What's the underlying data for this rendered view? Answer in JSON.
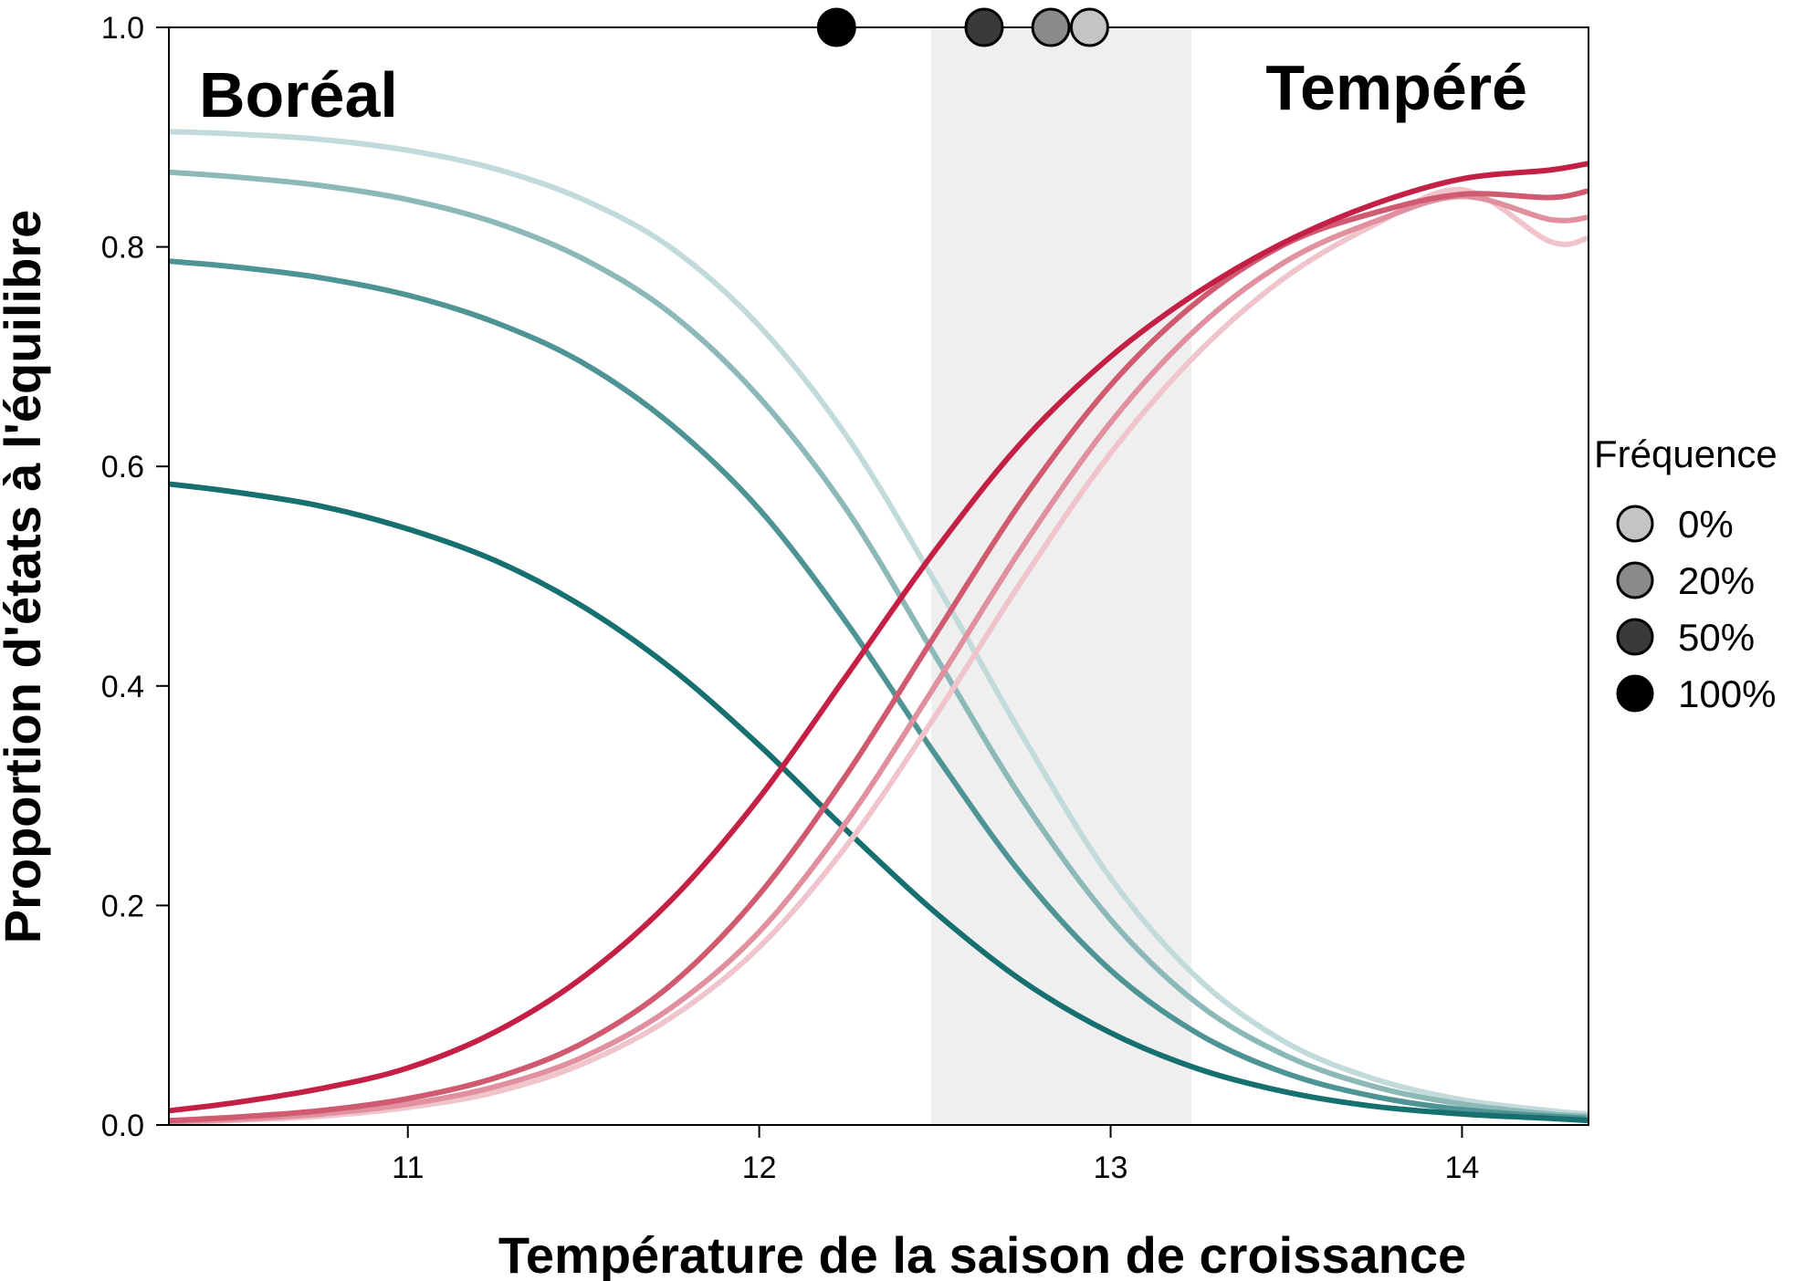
{
  "chart_data": {
    "type": "line",
    "title": "",
    "xlabel": "Température de la saison de croissance",
    "ylabel": "Proportion d'états à l'équilibre",
    "xlim": [
      10.32,
      14.36
    ],
    "ylim": [
      0.0,
      1.0
    ],
    "x_ticks": [
      11,
      12,
      13,
      14
    ],
    "y_ticks": [
      0.0,
      0.2,
      0.4,
      0.6,
      0.8,
      1.0
    ],
    "x_tick_labels": [
      "11",
      "12",
      "13",
      "14"
    ],
    "y_tick_labels": [
      "0.0",
      "0.2",
      "0.4",
      "0.6",
      "0.8",
      "1.0"
    ],
    "grid": false,
    "region_labels": {
      "left": "Boréal",
      "right": "Tempéré"
    },
    "shaded_band": {
      "x_start": 12.49,
      "x_end": 13.23,
      "color": "#efefef"
    },
    "series_x": [
      10.32,
      10.5,
      10.75,
      11.0,
      11.25,
      11.5,
      11.75,
      12.0,
      12.25,
      12.5,
      12.75,
      13.0,
      13.25,
      13.5,
      13.75,
      14.0,
      14.25,
      14.36
    ],
    "series": [
      {
        "group": "boreal",
        "frequency": "0%",
        "color": "#c2dada",
        "values": [
          0.905,
          0.903,
          0.898,
          0.888,
          0.871,
          0.843,
          0.799,
          0.728,
          0.627,
          0.495,
          0.354,
          0.225,
          0.133,
          0.075,
          0.042,
          0.023,
          0.013,
          0.01
        ]
      },
      {
        "group": "boreal",
        "frequency": "20%",
        "color": "#8cb8b8",
        "values": [
          0.868,
          0.864,
          0.856,
          0.843,
          0.822,
          0.789,
          0.739,
          0.663,
          0.56,
          0.428,
          0.296,
          0.187,
          0.11,
          0.063,
          0.035,
          0.019,
          0.01,
          0.008
        ]
      },
      {
        "group": "boreal",
        "frequency": "50%",
        "color": "#4f9494",
        "values": [
          0.787,
          0.782,
          0.772,
          0.756,
          0.731,
          0.694,
          0.638,
          0.561,
          0.457,
          0.338,
          0.227,
          0.141,
          0.083,
          0.047,
          0.026,
          0.014,
          0.008,
          0.006
        ]
      },
      {
        "group": "boreal",
        "frequency": "100%",
        "color": "#16706f",
        "values": [
          0.584,
          0.577,
          0.564,
          0.543,
          0.514,
          0.472,
          0.416,
          0.346,
          0.268,
          0.194,
          0.131,
          0.084,
          0.051,
          0.03,
          0.017,
          0.01,
          0.006,
          0.004
        ]
      },
      {
        "group": "tempere",
        "frequency": "0%",
        "color": "#f0c4cb",
        "values": [
          0.002,
          0.004,
          0.008,
          0.016,
          0.03,
          0.056,
          0.098,
          0.162,
          0.255,
          0.372,
          0.497,
          0.612,
          0.704,
          0.773,
          0.82,
          0.852,
          0.805,
          0.808
        ]
      },
      {
        "group": "tempere",
        "frequency": "20%",
        "color": "#e0909f",
        "values": [
          0.003,
          0.005,
          0.01,
          0.019,
          0.035,
          0.062,
          0.107,
          0.176,
          0.277,
          0.4,
          0.527,
          0.64,
          0.727,
          0.787,
          0.823,
          0.846,
          0.825,
          0.827
        ]
      },
      {
        "group": "tempere",
        "frequency": "50%",
        "color": "#d05a70",
        "values": [
          0.004,
          0.007,
          0.013,
          0.024,
          0.043,
          0.075,
          0.128,
          0.21,
          0.32,
          0.446,
          0.57,
          0.674,
          0.751,
          0.803,
          0.831,
          0.848,
          0.845,
          0.851
        ]
      },
      {
        "group": "tempere",
        "frequency": "100%",
        "color": "#c41f44",
        "values": [
          0.013,
          0.02,
          0.033,
          0.052,
          0.085,
          0.135,
          0.205,
          0.298,
          0.41,
          0.523,
          0.623,
          0.7,
          0.759,
          0.805,
          0.839,
          0.862,
          0.87,
          0.876
        ]
      }
    ],
    "threshold_points": [
      {
        "frequency": "100%",
        "x": 12.22,
        "y": 1.0,
        "fill": "#000000"
      },
      {
        "frequency": "50%",
        "x": 12.64,
        "y": 1.0,
        "fill": "#3a3a3a"
      },
      {
        "frequency": "20%",
        "x": 12.83,
        "y": 1.0,
        "fill": "#8a8a8a"
      },
      {
        "frequency": "0%",
        "x": 12.94,
        "y": 1.0,
        "fill": "#c4c4c4"
      }
    ],
    "legend": {
      "title": "Fréquence",
      "position": "right",
      "entries": [
        {
          "label": "0%",
          "fill": "#c4c4c4"
        },
        {
          "label": "20%",
          "fill": "#8a8a8a"
        },
        {
          "label": "50%",
          "fill": "#3a3a3a"
        },
        {
          "label": "100%",
          "fill": "#000000"
        }
      ]
    }
  }
}
